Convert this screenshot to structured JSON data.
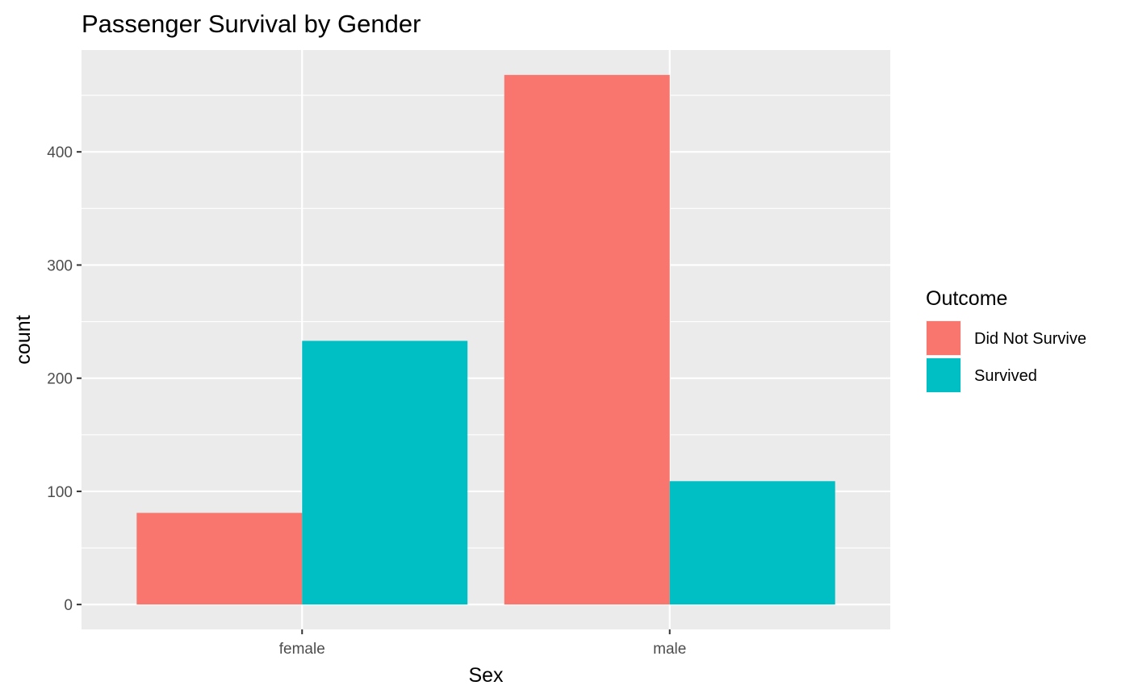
{
  "chart_data": {
    "type": "bar",
    "title": "Passenger Survival by Gender",
    "xlabel": "Sex",
    "ylabel": "count",
    "categories": [
      "female",
      "male"
    ],
    "series": [
      {
        "name": "Did Not Survive",
        "values": [
          81,
          468
        ],
        "color": "#F8766D"
      },
      {
        "name": "Survived",
        "values": [
          233,
          109
        ],
        "color": "#00BFC4"
      }
    ],
    "ylim": [
      -22,
      490
    ],
    "yticks": [
      0,
      100,
      200,
      300,
      400
    ],
    "yticks_labels": [
      "0",
      "100",
      "200",
      "300",
      "400"
    ],
    "legend": {
      "title": "Outcome",
      "position": "right"
    },
    "grid": true,
    "background_color": "#EBEBEB",
    "grid_color": "#FFFFFF"
  }
}
